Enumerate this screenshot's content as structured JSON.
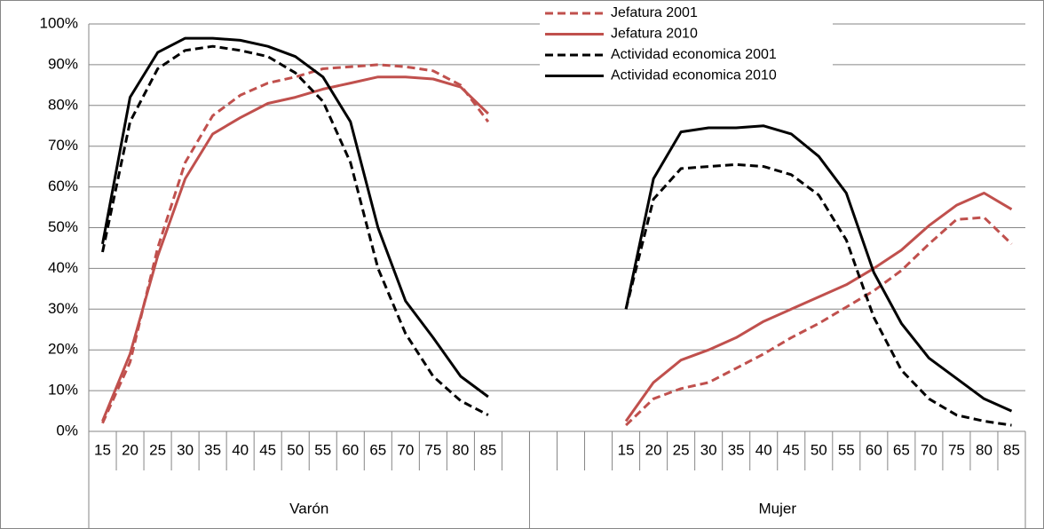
{
  "chart_data": {
    "type": "line",
    "categories": [
      "15",
      "20",
      "25",
      "30",
      "35",
      "40",
      "45",
      "50",
      "55",
      "60",
      "65",
      "70",
      "75",
      "80",
      "85",
      null,
      null,
      null,
      null,
      "15",
      "20",
      "25",
      "30",
      "35",
      "40",
      "45",
      "50",
      "55",
      "60",
      "65",
      "70",
      "75",
      "80",
      "85"
    ],
    "groups": [
      "Varón",
      "Mujer"
    ],
    "ylim": [
      0,
      100
    ],
    "yticks": [
      {
        "value": 0,
        "label": "0%"
      },
      {
        "value": 10,
        "label": "10%"
      },
      {
        "value": 20,
        "label": "20%"
      },
      {
        "value": 30,
        "label": "30%"
      },
      {
        "value": 40,
        "label": "40%"
      },
      {
        "value": 50,
        "label": "50%"
      },
      {
        "value": 60,
        "label": "60%"
      },
      {
        "value": 70,
        "label": "70%"
      },
      {
        "value": 80,
        "label": "80%"
      },
      {
        "value": 90,
        "label": "90%"
      },
      {
        "value": 100,
        "label": "100%"
      }
    ],
    "grid": true,
    "legend": "top-right",
    "series": [
      {
        "name": "Jefatura 2001",
        "color": "#c0504d",
        "dash": true,
        "values": [
          2,
          17,
          45,
          66,
          77.5,
          82.5,
          85.5,
          87,
          89,
          89.5,
          90,
          89.5,
          88.5,
          85,
          76,
          null,
          null,
          null,
          null,
          1.5,
          8,
          10.5,
          12,
          15.5,
          19,
          23,
          26.5,
          30.5,
          34.5,
          39.5,
          46,
          52,
          52.5,
          46
        ]
      },
      {
        "name": "Jefatura 2010",
        "color": "#c0504d",
        "dash": false,
        "values": [
          2.5,
          19,
          43,
          62,
          73,
          77,
          80.5,
          82,
          84,
          85.5,
          87,
          87,
          86.5,
          84.5,
          78,
          null,
          null,
          null,
          null,
          2.5,
          12,
          17.5,
          20,
          23,
          27,
          30,
          33,
          36,
          40,
          44.5,
          50.5,
          55.5,
          58.5,
          54.5
        ]
      },
      {
        "name": "Actividad economica 2001",
        "color": "#000000",
        "dash": true,
        "values": [
          44,
          76,
          89,
          93.5,
          94.5,
          93.5,
          92,
          88,
          81,
          66,
          40,
          24,
          13.5,
          7.5,
          4,
          null,
          null,
          null,
          null,
          30,
          57,
          64.5,
          65,
          65.5,
          65,
          63,
          58,
          47,
          28,
          15,
          8,
          4,
          2.5,
          1.5
        ]
      },
      {
        "name": "Actividad economica 2010",
        "color": "#000000",
        "dash": false,
        "values": [
          46,
          82,
          93,
          96.5,
          96.5,
          96,
          94.5,
          92,
          87,
          76,
          50,
          32,
          23,
          13.5,
          8.5,
          null,
          null,
          null,
          null,
          30,
          62,
          73.5,
          74.5,
          74.5,
          75,
          73,
          67.5,
          58.5,
          39,
          26.5,
          18,
          13,
          8,
          5
        ]
      }
    ]
  }
}
